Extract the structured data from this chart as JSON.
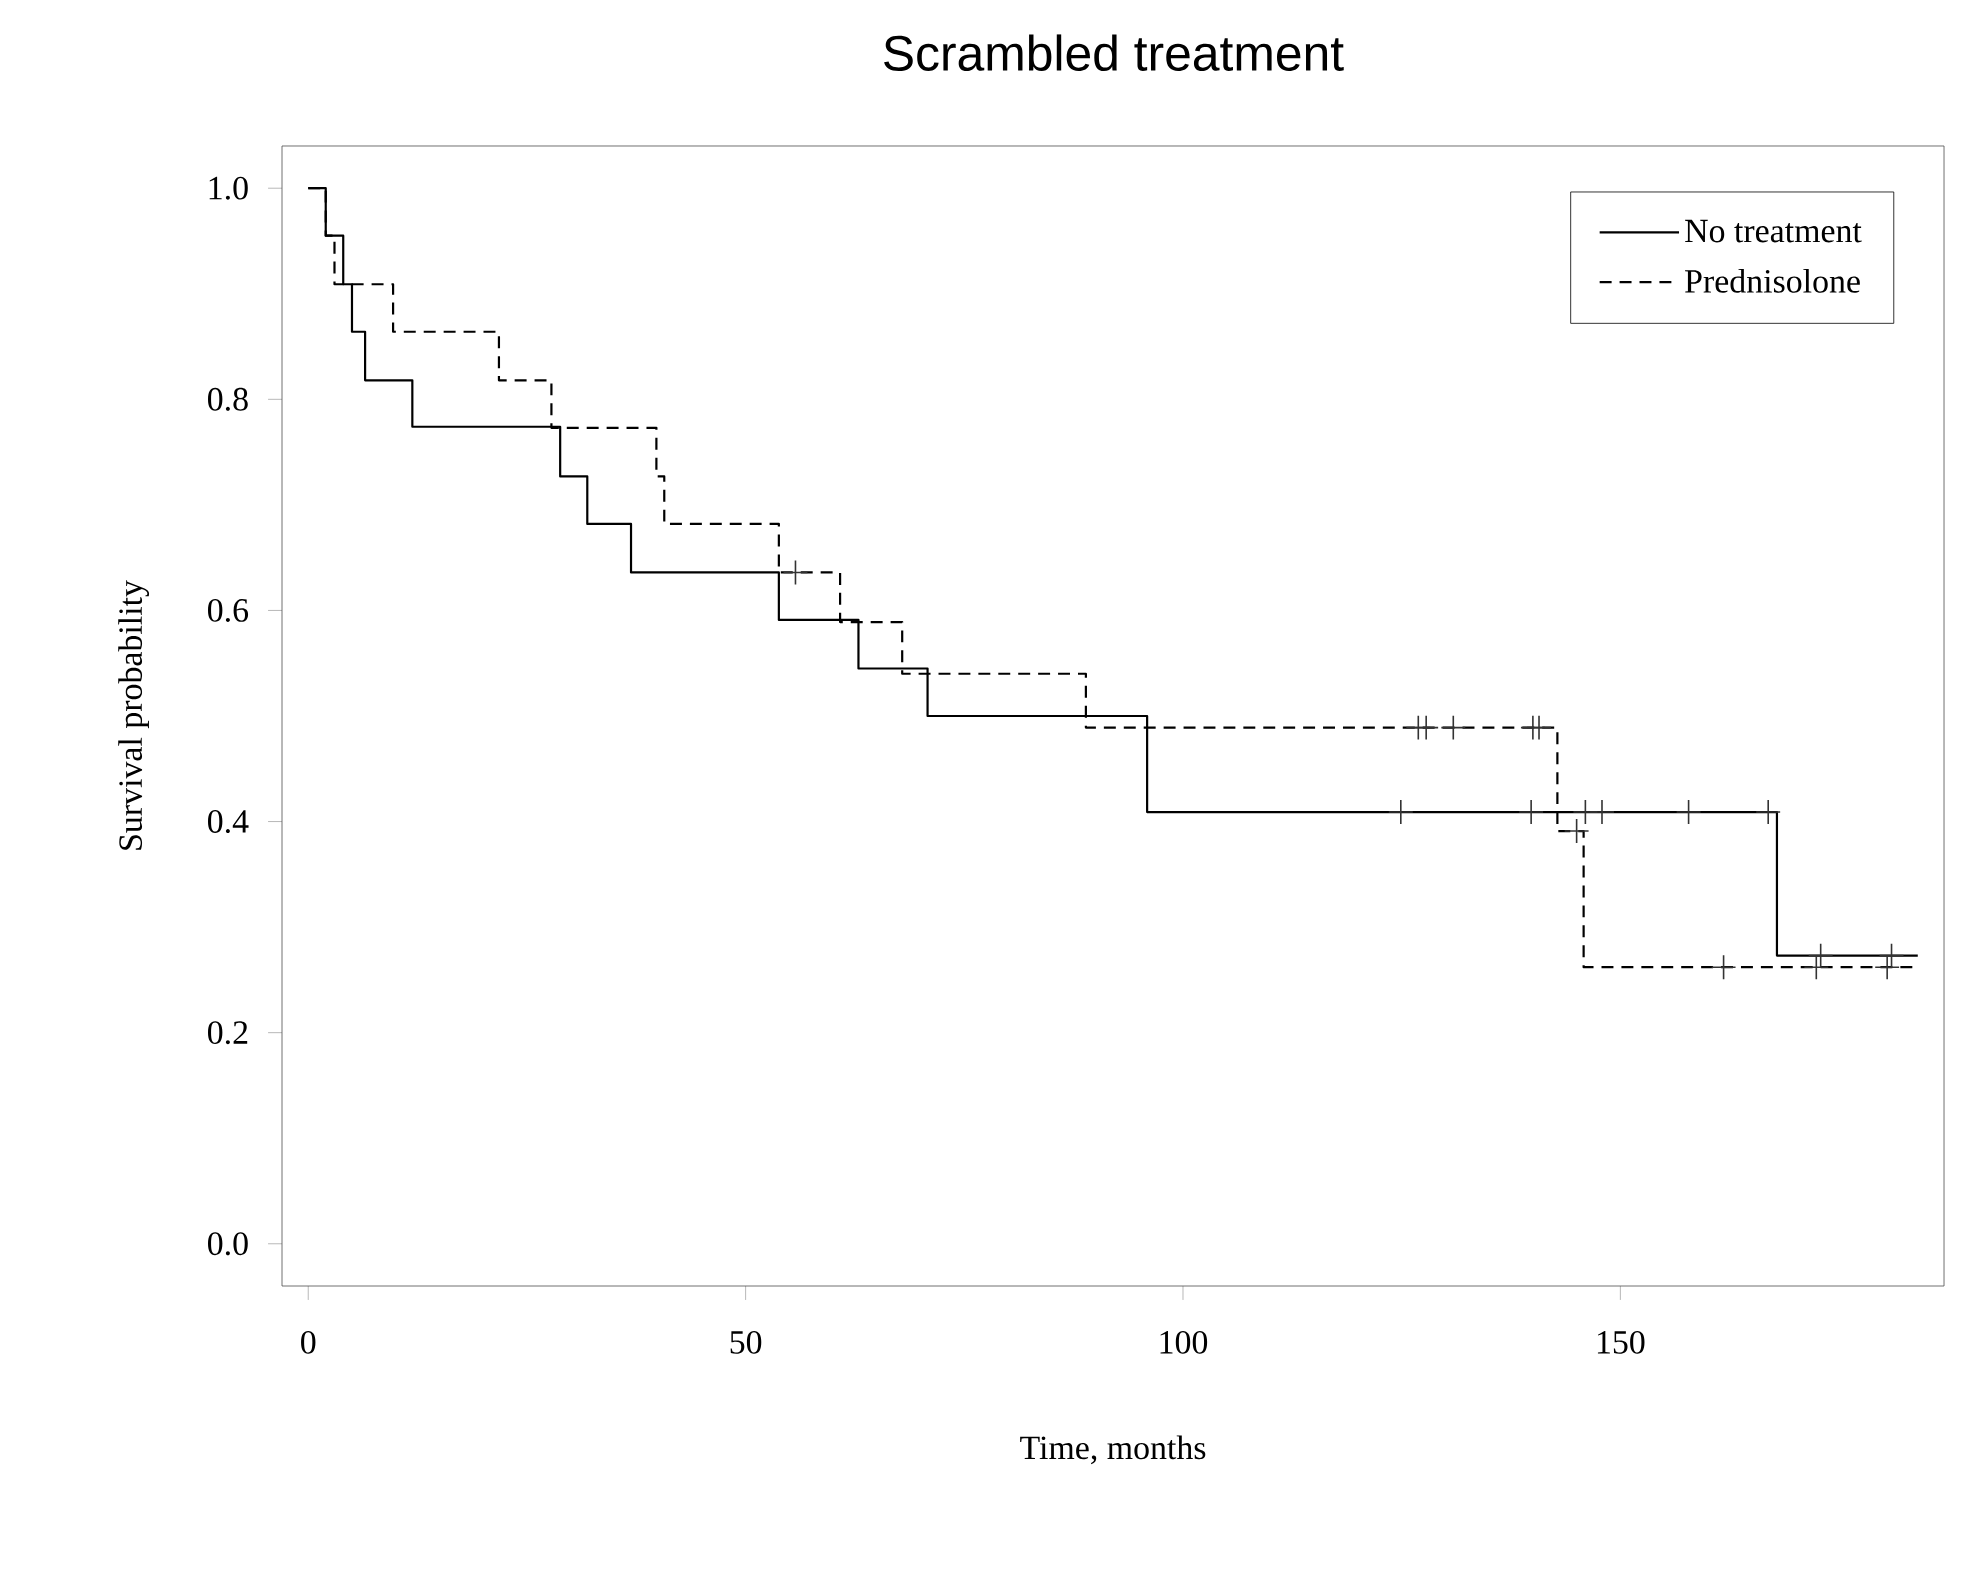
{
  "chart_data": {
    "type": "step",
    "title": "Scrambled treatment",
    "xlabel": "Time, months",
    "ylabel": "Survival probability",
    "xlim": [
      -3,
      187
    ],
    "ylim": [
      -0.04,
      1.04
    ],
    "xticks": [
      0,
      50,
      100,
      150
    ],
    "yticks": [
      {
        "value": 0,
        "label": "0.0"
      },
      {
        "value": 0.2,
        "label": "0.2"
      },
      {
        "value": 0.4,
        "label": "0.4"
      },
      {
        "value": 0.6,
        "label": "0.6"
      },
      {
        "value": 0.8,
        "label": "0.8"
      },
      {
        "value": 1,
        "label": "1.0"
      }
    ],
    "grid": false,
    "legend": "top right",
    "series": [
      {
        "name": "No treatment",
        "color": "#000000",
        "line_style": "solid",
        "marker": "none",
        "x": [
          0,
          2,
          4,
          5,
          6.5,
          11.9,
          28.8,
          31.9,
          36.9,
          53.8,
          62.9,
          70.8,
          95.9,
          167.9,
          184
        ],
        "values": [
          1,
          0.955,
          0.909,
          0.864,
          0.818,
          0.774,
          0.727,
          0.682,
          0.636,
          0.591,
          0.545,
          0.5,
          0.409,
          0.273,
          0.273
        ]
      },
      {
        "name": "Prednisolone",
        "color": "#000000",
        "line_style": "dashed",
        "marker": "none",
        "x": [
          0,
          2,
          3,
          9.7,
          21.8,
          27.8,
          39.8,
          40.7,
          53.8,
          60.8,
          67.9,
          88.9,
          142.8,
          145.8,
          184
        ],
        "values": [
          1,
          0.955,
          0.909,
          0.864,
          0.818,
          0.773,
          0.727,
          0.682,
          0.636,
          0.589,
          0.54,
          0.489,
          0.391,
          0.262,
          0.262
        ]
      },
      {
        "type": "scatter",
        "color": "#333333",
        "marker": "cross",
        "x": [
          124.9,
          139.8,
          146,
          147.9,
          157.8,
          166.9,
          172.9,
          181
        ],
        "values": [
          0.409,
          0.409,
          0.409,
          0.409,
          0.409,
          0.409,
          0.273,
          0.273
        ]
      },
      {
        "type": "scatter",
        "color": "#333333",
        "marker": "cross",
        "x": [
          55.7,
          126.9,
          127.8,
          130.9,
          140,
          140.7,
          145,
          161.8,
          172.4,
          180.5
        ],
        "values": [
          0.636,
          0.489,
          0.489,
          0.489,
          0.489,
          0.489,
          0.391,
          0.262,
          0.262,
          0.262
        ]
      }
    ]
  }
}
